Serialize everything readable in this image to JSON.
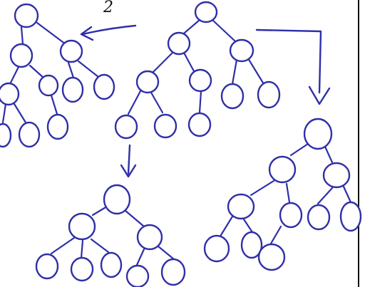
{
  "page_number": "2",
  "ink_color": "#2f2fa8",
  "trees": [
    {
      "name": "top-left-tree"
    },
    {
      "name": "top-center-tree"
    },
    {
      "name": "bottom-center-tree"
    },
    {
      "name": "bottom-right-tree"
    }
  ]
}
